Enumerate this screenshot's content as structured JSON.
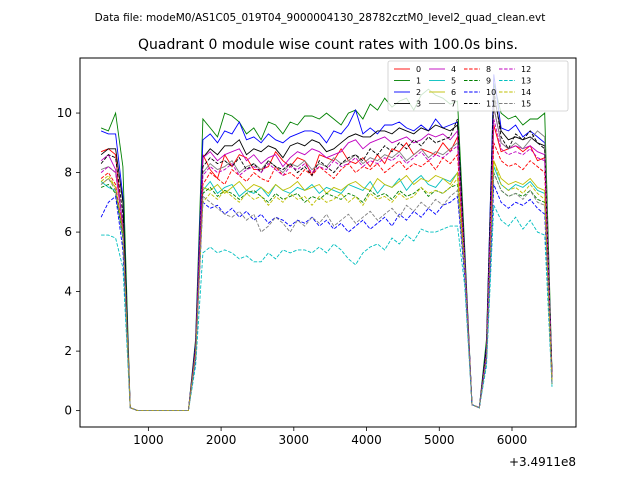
{
  "header": {
    "data_file": "Data file: modeM0/AS1C05_019T04_9000004130_28782cztM0_level2_quad_clean.evt"
  },
  "chart_data": {
    "type": "line",
    "title": "Quadrant 0 module wise count rates with 100.0s bins.",
    "xlabel": "",
    "ylabel": "",
    "x_offset_label": "+3.4911e8",
    "xlim": [
      60,
      6880
    ],
    "ylim": [
      -0.55,
      11.85
    ],
    "xticks": [
      1000,
      2000,
      3000,
      4000,
      5000,
      6000
    ],
    "xtick_labels": [
      "1000",
      "2000",
      "3000",
      "4000",
      "5000",
      "6000"
    ],
    "yticks": [
      0,
      2,
      4,
      6,
      8,
      10
    ],
    "ytick_labels": [
      "0",
      "2",
      "4",
      "6",
      "8",
      "10"
    ],
    "x": [
      350,
      450,
      550,
      650,
      750,
      850,
      950,
      1050,
      1150,
      1250,
      1350,
      1450,
      1550,
      1650,
      1750,
      1850,
      1950,
      2050,
      2150,
      2250,
      2350,
      2450,
      2550,
      2650,
      2750,
      2850,
      2950,
      3050,
      3150,
      3250,
      3350,
      3450,
      3550,
      3650,
      3750,
      3850,
      3950,
      4050,
      4150,
      4250,
      4350,
      4450,
      4550,
      4650,
      4750,
      4850,
      4950,
      5050,
      5150,
      5250,
      5350,
      5450,
      5550,
      5650,
      5750,
      5850,
      5950,
      6050,
      6150,
      6250,
      6350,
      6450,
      6550
    ],
    "legend": {
      "position": "top-right",
      "columns": 4
    },
    "series": [
      {
        "name": "0",
        "color": "#ff0000",
        "dash": "solid",
        "values": [
          8.7,
          8.8,
          8.6,
          6.0,
          0.1,
          0,
          0,
          0,
          0,
          0,
          0,
          0,
          0,
          2.0,
          8.6,
          8.1,
          7.8,
          8.6,
          8.2,
          8.6,
          8.5,
          8.1,
          8.1,
          8.2,
          8.7,
          8.4,
          8.2,
          8.5,
          8.4,
          7.9,
          8.6,
          8.5,
          8.4,
          8.8,
          8.4,
          8.3,
          8.5,
          8.2,
          8.6,
          8.3,
          8.8,
          8.7,
          9.0,
          8.6,
          8.8,
          8.7,
          8.6,
          9.0,
          8.7,
          9.2,
          5.0,
          0.2,
          0.1,
          1.8,
          9.6,
          8.7,
          8.8,
          8.9,
          8.7,
          8.9,
          8.4,
          8.5,
          1.2
        ]
      },
      {
        "name": "1",
        "color": "#008000",
        "dash": "solid",
        "values": [
          9.5,
          9.4,
          10.0,
          8.2,
          0.1,
          0,
          0,
          0,
          0,
          0,
          0,
          0,
          0,
          2.4,
          9.8,
          9.5,
          9.2,
          10.0,
          9.9,
          9.7,
          9.3,
          9.5,
          9.1,
          9.7,
          9.6,
          9.3,
          9.7,
          9.6,
          9.9,
          9.9,
          9.8,
          10.0,
          9.8,
          9.6,
          10.0,
          10.1,
          9.8,
          10.3,
          10.1,
          10.5,
          10.2,
          10.4,
          10.5,
          10.1,
          10.6,
          10.8,
          10.6,
          10.5,
          10.3,
          10.4,
          5.5,
          0.2,
          0.1,
          2.4,
          11.0,
          10.0,
          9.8,
          9.9,
          9.6,
          9.8,
          9.8,
          10.0,
          1.3
        ]
      },
      {
        "name": "2",
        "color": "#0000ff",
        "dash": "solid",
        "values": [
          9.4,
          9.3,
          9.3,
          7.2,
          0.1,
          0,
          0,
          0,
          0,
          0,
          0,
          0,
          0,
          2.3,
          9.1,
          9.3,
          9.0,
          9.4,
          9.3,
          9.7,
          9.1,
          9.2,
          9.0,
          9.3,
          9.1,
          9.0,
          9.2,
          9.3,
          9.4,
          9.4,
          9.3,
          9.0,
          9.4,
          9.3,
          9.6,
          10.1,
          9.3,
          9.5,
          9.3,
          9.6,
          9.6,
          9.7,
          9.5,
          9.4,
          9.6,
          9.4,
          9.8,
          9.5,
          9.6,
          9.7,
          5.3,
          0.2,
          0.1,
          2.2,
          11.3,
          9.5,
          9.4,
          9.6,
          9.2,
          9.4,
          9.2,
          9.0,
          1.2
        ]
      },
      {
        "name": "3",
        "color": "#000000",
        "dash": "solid",
        "values": [
          8.6,
          8.8,
          8.8,
          7.0,
          0.1,
          0,
          0,
          0,
          0,
          0,
          0,
          0,
          0,
          2.2,
          8.5,
          8.8,
          8.6,
          8.9,
          8.9,
          9.1,
          8.6,
          8.8,
          8.7,
          8.9,
          8.8,
          8.5,
          8.9,
          9.0,
          8.9,
          9.1,
          9.0,
          8.7,
          8.8,
          9.0,
          9.2,
          9.3,
          9.2,
          9.2,
          9.4,
          9.4,
          9.3,
          9.5,
          9.4,
          9.3,
          9.5,
          9.4,
          9.6,
          9.5,
          9.4,
          9.6,
          5.2,
          0.2,
          0.1,
          2.1,
          10.6,
          9.4,
          9.1,
          9.2,
          9.1,
          9.2,
          9.0,
          8.9,
          1.2
        ]
      },
      {
        "name": "4",
        "color": "#bf00bf",
        "dash": "solid",
        "values": [
          8.4,
          8.6,
          8.1,
          6.3,
          0.1,
          0,
          0,
          0,
          0,
          0,
          0,
          0,
          0,
          2.1,
          8.5,
          8.7,
          8.4,
          8.6,
          8.7,
          8.8,
          8.4,
          8.6,
          8.3,
          8.5,
          8.6,
          8.2,
          8.5,
          8.7,
          8.6,
          8.8,
          8.7,
          8.5,
          8.6,
          8.7,
          9.0,
          9.1,
          8.8,
          9.0,
          9.1,
          9.2,
          9.0,
          9.1,
          9.2,
          9.0,
          9.1,
          9.3,
          9.2,
          9.3,
          9.1,
          9.4,
          5.1,
          0.2,
          0.1,
          2.0,
          10.2,
          9.0,
          8.8,
          8.9,
          8.8,
          8.9,
          8.7,
          8.6,
          1.1
        ]
      },
      {
        "name": "5",
        "color": "#00bfbf",
        "dash": "solid",
        "values": [
          7.7,
          7.5,
          7.4,
          5.8,
          0.1,
          0,
          0,
          0,
          0,
          0,
          0,
          0,
          0,
          1.9,
          7.4,
          7.7,
          7.3,
          7.5,
          7.6,
          7.2,
          7.4,
          7.3,
          7.5,
          7.2,
          7.6,
          7.4,
          7.3,
          7.5,
          7.4,
          7.6,
          7.3,
          7.5,
          7.4,
          7.3,
          7.6,
          7.5,
          7.4,
          7.7,
          7.3,
          7.6,
          7.5,
          7.8,
          7.4,
          7.7,
          7.9,
          7.6,
          7.5,
          7.8,
          7.7,
          8.0,
          4.8,
          0.2,
          0.1,
          1.8,
          8.2,
          7.6,
          7.4,
          7.6,
          7.5,
          7.7,
          7.4,
          7.3,
          1.0
        ]
      },
      {
        "name": "6",
        "color": "#bfbf00",
        "dash": "solid",
        "values": [
          7.6,
          7.8,
          7.5,
          6.0,
          0.1,
          0,
          0,
          0,
          0,
          0,
          0,
          0,
          0,
          1.9,
          7.5,
          7.4,
          7.6,
          7.3,
          7.5,
          7.7,
          7.4,
          7.6,
          7.5,
          7.3,
          7.6,
          7.4,
          7.5,
          7.7,
          7.4,
          7.5,
          7.6,
          7.3,
          7.5,
          7.4,
          7.6,
          7.7,
          7.5,
          7.4,
          7.8,
          7.6,
          7.5,
          7.7,
          7.9,
          7.6,
          7.8,
          7.7,
          7.9,
          7.8,
          7.6,
          8.0,
          4.8,
          0.2,
          0.1,
          1.8,
          8.4,
          7.8,
          7.6,
          7.7,
          7.6,
          7.8,
          7.5,
          7.4,
          1.0
        ]
      },
      {
        "name": "7",
        "color": "#808080",
        "dash": "solid",
        "values": [
          8.1,
          8.2,
          8.0,
          6.2,
          0.1,
          0,
          0,
          0,
          0,
          0,
          0,
          0,
          0,
          2.0,
          8.0,
          8.3,
          8.1,
          8.2,
          8.4,
          8.0,
          8.2,
          8.3,
          8.1,
          8.4,
          8.2,
          8.0,
          8.3,
          8.2,
          8.4,
          8.1,
          8.3,
          8.2,
          8.5,
          8.3,
          8.4,
          8.6,
          8.3,
          8.5,
          8.4,
          8.6,
          8.5,
          8.7,
          8.4,
          8.6,
          8.8,
          8.5,
          8.7,
          8.6,
          8.8,
          9.0,
          5.0,
          0.2,
          0.1,
          1.9,
          10.2,
          9.0,
          8.8,
          9.0,
          8.8,
          9.1,
          9.4,
          9.2,
          1.1
        ]
      },
      {
        "name": "8",
        "color": "#ff0000",
        "dash": "dash",
        "values": [
          7.8,
          8.0,
          7.6,
          6.0,
          0.1,
          0,
          0,
          0,
          0,
          0,
          0,
          0,
          0,
          1.9,
          7.6,
          8.0,
          7.8,
          7.6,
          8.1,
          7.9,
          7.7,
          8.0,
          7.8,
          7.7,
          8.2,
          7.9,
          8.0,
          7.8,
          8.1,
          7.9,
          8.2,
          8.0,
          7.8,
          8.1,
          8.3,
          8.0,
          8.2,
          8.1,
          8.3,
          8.0,
          8.2,
          8.4,
          8.1,
          8.3,
          8.2,
          8.4,
          8.1,
          8.5,
          8.3,
          8.6,
          4.9,
          0.2,
          0.1,
          1.9,
          9.0,
          8.4,
          8.2,
          8.3,
          8.1,
          8.4,
          8.2,
          8.0,
          1.0
        ]
      },
      {
        "name": "9",
        "color": "#008000",
        "dash": "dash",
        "values": [
          7.5,
          7.6,
          7.3,
          5.8,
          0.1,
          0,
          0,
          0,
          0,
          0,
          0,
          0,
          0,
          1.8,
          7.3,
          7.5,
          7.2,
          7.4,
          7.3,
          7.1,
          7.3,
          7.4,
          7.2,
          7.0,
          7.3,
          7.1,
          7.2,
          7.3,
          7.0,
          7.2,
          7.1,
          7.3,
          7.2,
          7.1,
          7.3,
          7.2,
          7.0,
          7.4,
          7.2,
          7.3,
          7.1,
          7.4,
          7.2,
          7.3,
          7.5,
          7.2,
          7.4,
          7.3,
          7.5,
          7.6,
          4.7,
          0.2,
          0.1,
          1.8,
          8.0,
          7.4,
          7.2,
          7.3,
          7.2,
          7.4,
          7.1,
          7.0,
          0.9
        ]
      },
      {
        "name": "10",
        "color": "#0000ff",
        "dash": "dash",
        "values": [
          6.5,
          7.0,
          7.2,
          5.4,
          0.1,
          0,
          0,
          0,
          0,
          0,
          0,
          0,
          0,
          1.7,
          7.0,
          6.8,
          6.9,
          6.6,
          6.8,
          6.5,
          6.7,
          6.4,
          6.6,
          6.3,
          6.5,
          6.4,
          6.2,
          6.4,
          6.3,
          6.5,
          6.2,
          6.4,
          6.1,
          6.3,
          6.0,
          6.2,
          6.4,
          6.1,
          6.3,
          6.5,
          6.2,
          6.6,
          6.4,
          6.7,
          6.5,
          6.8,
          6.6,
          6.9,
          7.0,
          7.2,
          4.5,
          0.2,
          0.1,
          1.7,
          7.6,
          7.0,
          6.8,
          7.0,
          6.9,
          7.1,
          6.8,
          6.6,
          0.9
        ]
      },
      {
        "name": "11",
        "color": "#000000",
        "dash": "dash",
        "values": [
          8.3,
          8.6,
          8.5,
          6.6,
          0.1,
          0,
          0,
          0,
          0,
          0,
          0,
          0,
          0,
          2.1,
          8.2,
          8.5,
          8.3,
          8.4,
          8.2,
          8.5,
          8.1,
          8.3,
          8.0,
          8.4,
          8.2,
          8.1,
          8.3,
          8.0,
          8.2,
          7.9,
          8.4,
          8.2,
          8.0,
          8.3,
          8.5,
          8.6,
          8.4,
          8.8,
          8.6,
          8.9,
          8.7,
          9.0,
          8.8,
          9.1,
          8.9,
          9.2,
          9.0,
          9.1,
          9.2,
          9.8,
          5.1,
          0.2,
          0.1,
          2.1,
          10.8,
          9.2,
          8.8,
          9.3,
          9.1,
          9.4,
          9.0,
          8.8,
          1.1
        ]
      },
      {
        "name": "12",
        "color": "#bf00bf",
        "dash": "dash",
        "values": [
          8.0,
          8.2,
          8.0,
          6.2,
          0.1,
          0,
          0,
          0,
          0,
          0,
          0,
          0,
          0,
          2.0,
          7.9,
          8.2,
          8.0,
          8.1,
          8.3,
          7.9,
          8.1,
          8.2,
          8.0,
          8.3,
          8.1,
          7.9,
          8.2,
          8.1,
          8.3,
          8.0,
          8.2,
          8.1,
          8.4,
          8.2,
          8.3,
          8.5,
          8.2,
          8.4,
          8.3,
          8.5,
          8.4,
          8.6,
          8.3,
          8.5,
          8.7,
          8.4,
          8.6,
          8.5,
          8.7,
          8.9,
          5.0,
          0.2,
          0.1,
          1.9,
          9.8,
          8.8,
          8.6,
          8.7,
          8.6,
          8.8,
          8.5,
          8.4,
          1.1
        ]
      },
      {
        "name": "13",
        "color": "#00bfbf",
        "dash": "dash",
        "values": [
          5.9,
          5.9,
          5.8,
          4.8,
          0.1,
          0,
          0,
          0,
          0,
          0,
          0,
          0,
          0,
          1.5,
          5.3,
          5.5,
          5.3,
          5.4,
          5.3,
          5.1,
          5.2,
          5.0,
          5.0,
          5.3,
          5.1,
          5.4,
          5.3,
          5.4,
          5.4,
          5.3,
          5.5,
          5.3,
          5.6,
          5.4,
          5.1,
          4.9,
          5.3,
          5.5,
          5.6,
          5.4,
          5.8,
          5.6,
          5.9,
          5.7,
          6.1,
          6.0,
          6.0,
          6.1,
          6.2,
          6.2,
          4.2,
          0.2,
          0.1,
          1.5,
          6.9,
          6.4,
          6.2,
          6.5,
          6.1,
          6.4,
          6.0,
          5.9,
          0.8
        ]
      },
      {
        "name": "14",
        "color": "#bfbf00",
        "dash": "dash",
        "values": [
          7.7,
          7.9,
          7.5,
          6.0,
          0.1,
          0,
          0,
          0,
          0,
          0,
          0,
          0,
          0,
          1.9,
          7.0,
          7.3,
          7.1,
          7.4,
          7.2,
          7.0,
          7.3,
          7.1,
          7.2,
          6.9,
          7.2,
          7.0,
          7.3,
          7.1,
          7.2,
          6.9,
          7.2,
          7.0,
          7.1,
          7.3,
          7.0,
          7.2,
          6.9,
          7.3,
          7.1,
          7.2,
          7.0,
          7.3,
          7.1,
          7.2,
          7.5,
          7.3,
          7.4,
          7.3,
          7.5,
          7.8,
          4.8,
          0.2,
          0.1,
          1.8,
          8.4,
          7.6,
          7.4,
          7.5,
          7.3,
          7.6,
          7.3,
          7.1,
          1.0
        ]
      },
      {
        "name": "15",
        "color": "#808080",
        "dash": "dash",
        "values": [
          7.6,
          7.8,
          7.4,
          5.9,
          0.1,
          0,
          0,
          0,
          0,
          0,
          0,
          0,
          0,
          1.8,
          7.2,
          7.0,
          6.8,
          6.6,
          6.5,
          6.7,
          6.4,
          6.6,
          6.0,
          6.2,
          6.5,
          6.3,
          6.0,
          6.4,
          6.2,
          6.5,
          6.3,
          6.6,
          6.2,
          6.4,
          6.6,
          6.3,
          6.5,
          6.7,
          6.4,
          6.6,
          6.8,
          6.5,
          6.9,
          6.7,
          7.0,
          6.8,
          7.1,
          6.9,
          7.2,
          7.4,
          4.6,
          0.2,
          0.1,
          1.7,
          8.0,
          7.4,
          7.2,
          7.3,
          7.1,
          7.4,
          7.0,
          6.9,
          0.9
        ]
      }
    ]
  }
}
